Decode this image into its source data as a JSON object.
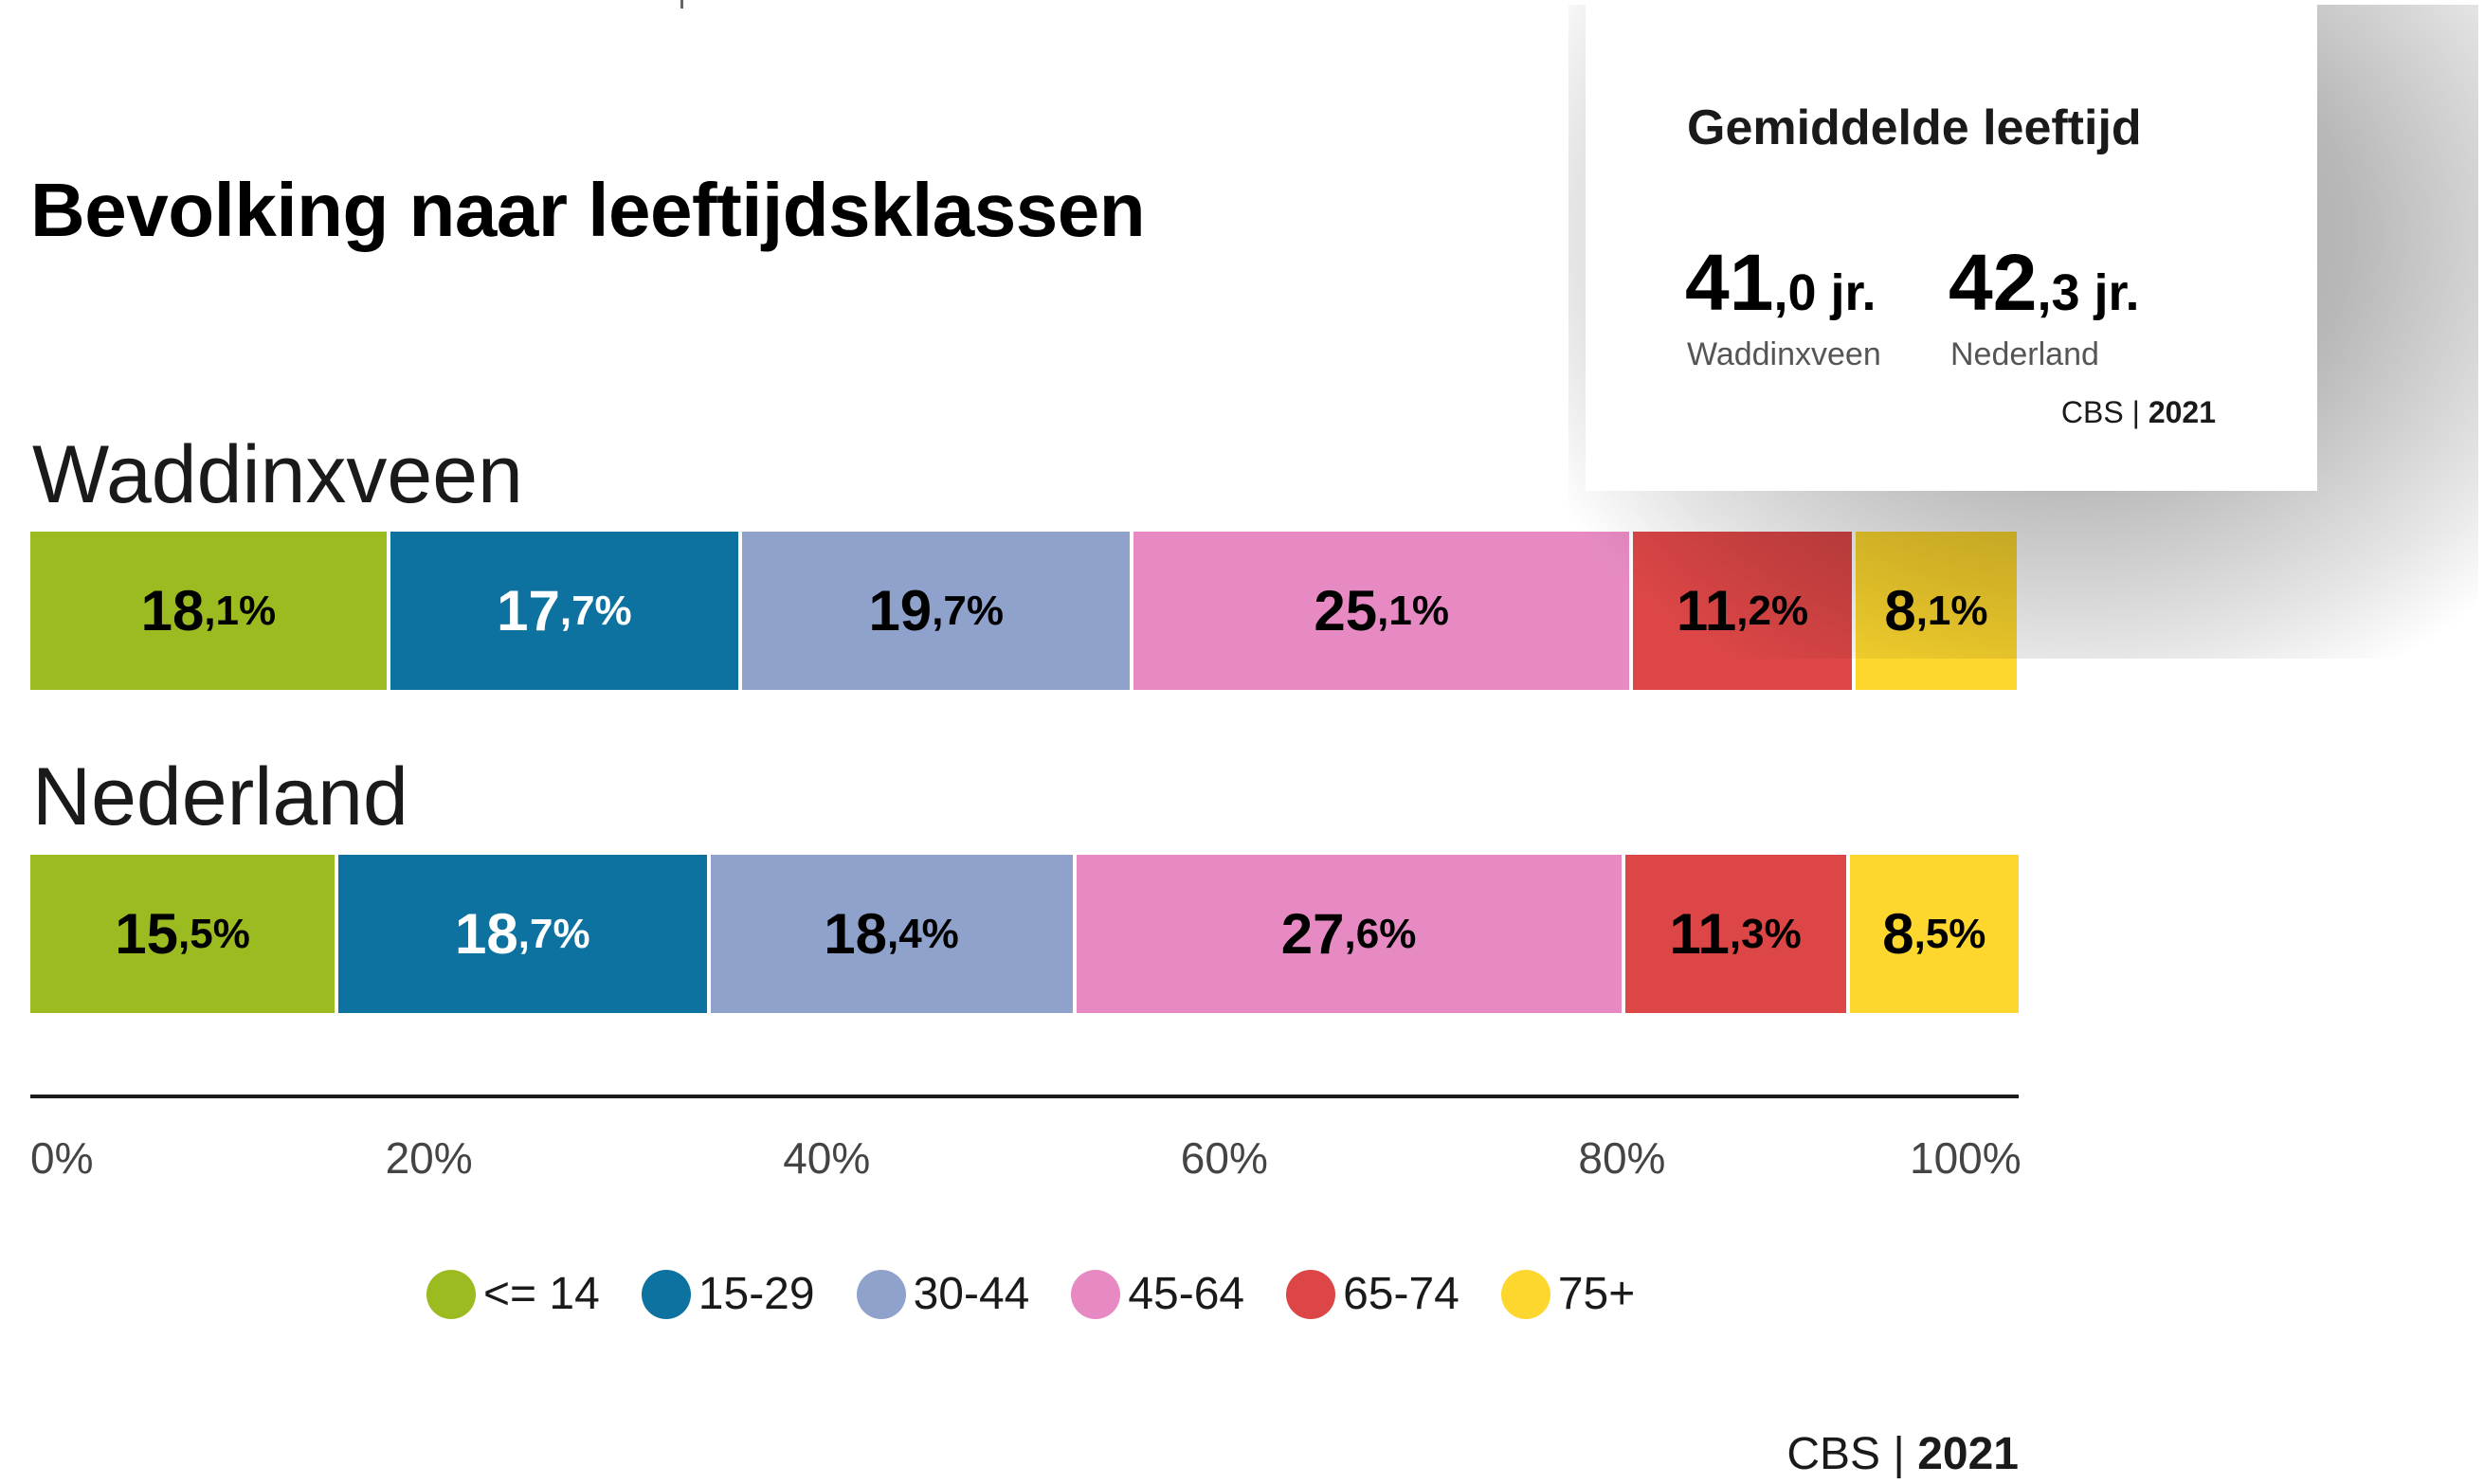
{
  "chart_data": {
    "type": "bar",
    "orientation": "horizontal-stacked-100",
    "title": "Bevolking naar leeftijdsklassen",
    "categories": [
      "Waddinxveen",
      "Nederland"
    ],
    "series": [
      {
        "name": "<= 14",
        "color": "#9bbb21",
        "values": [
          18.1,
          15.5
        ],
        "labels": [
          [
            "18",
            ",1%"
          ],
          [
            "15",
            ",5%"
          ]
        ],
        "text_color": "#000000"
      },
      {
        "name": "15-29",
        "color": "#0e72a0",
        "values": [
          17.7,
          18.7
        ],
        "labels": [
          [
            "17",
            ",7%"
          ],
          [
            "18",
            ",7%"
          ]
        ],
        "text_color": "#ffffff"
      },
      {
        "name": "30-44",
        "color": "#8fa2cc",
        "values": [
          19.7,
          18.4
        ],
        "labels": [
          [
            "19",
            ",7%"
          ],
          [
            "18",
            ",4%"
          ]
        ],
        "text_color": "#000000"
      },
      {
        "name": "45-64",
        "color": "#e78ac3",
        "values": [
          25.1,
          27.6
        ],
        "labels": [
          [
            "25",
            ",1%"
          ],
          [
            "27",
            ",6%"
          ]
        ],
        "text_color": "#000000"
      },
      {
        "name": "65-74",
        "color": "#dc4646",
        "values": [
          11.2,
          11.3
        ],
        "labels": [
          [
            "11",
            ",2%"
          ],
          [
            "11",
            ",3%"
          ]
        ],
        "text_color": "#000000"
      },
      {
        "name": "75+",
        "color": "#fdd72e",
        "values": [
          8.1,
          8.5
        ],
        "labels": [
          [
            "8",
            ",1%"
          ],
          [
            "8",
            ",5%"
          ]
        ],
        "text_color": "#000000"
      }
    ],
    "x_ticks": [
      "0%",
      "20%",
      "40%",
      "60%",
      "80%",
      "100%"
    ],
    "xlim": [
      0,
      100
    ],
    "legend_position": "bottom-center",
    "source": {
      "org": "CBS",
      "year": "2021"
    }
  },
  "card": {
    "title": "Gemiddelde leeftijd",
    "stats": [
      {
        "whole": "41",
        "frac": ",0 jr.",
        "label": "Waddinxveen"
      },
      {
        "whole": "42",
        "frac": ",3 jr.",
        "label": "Nederland"
      }
    ],
    "source": {
      "org": "CBS",
      "year": "2021"
    }
  }
}
